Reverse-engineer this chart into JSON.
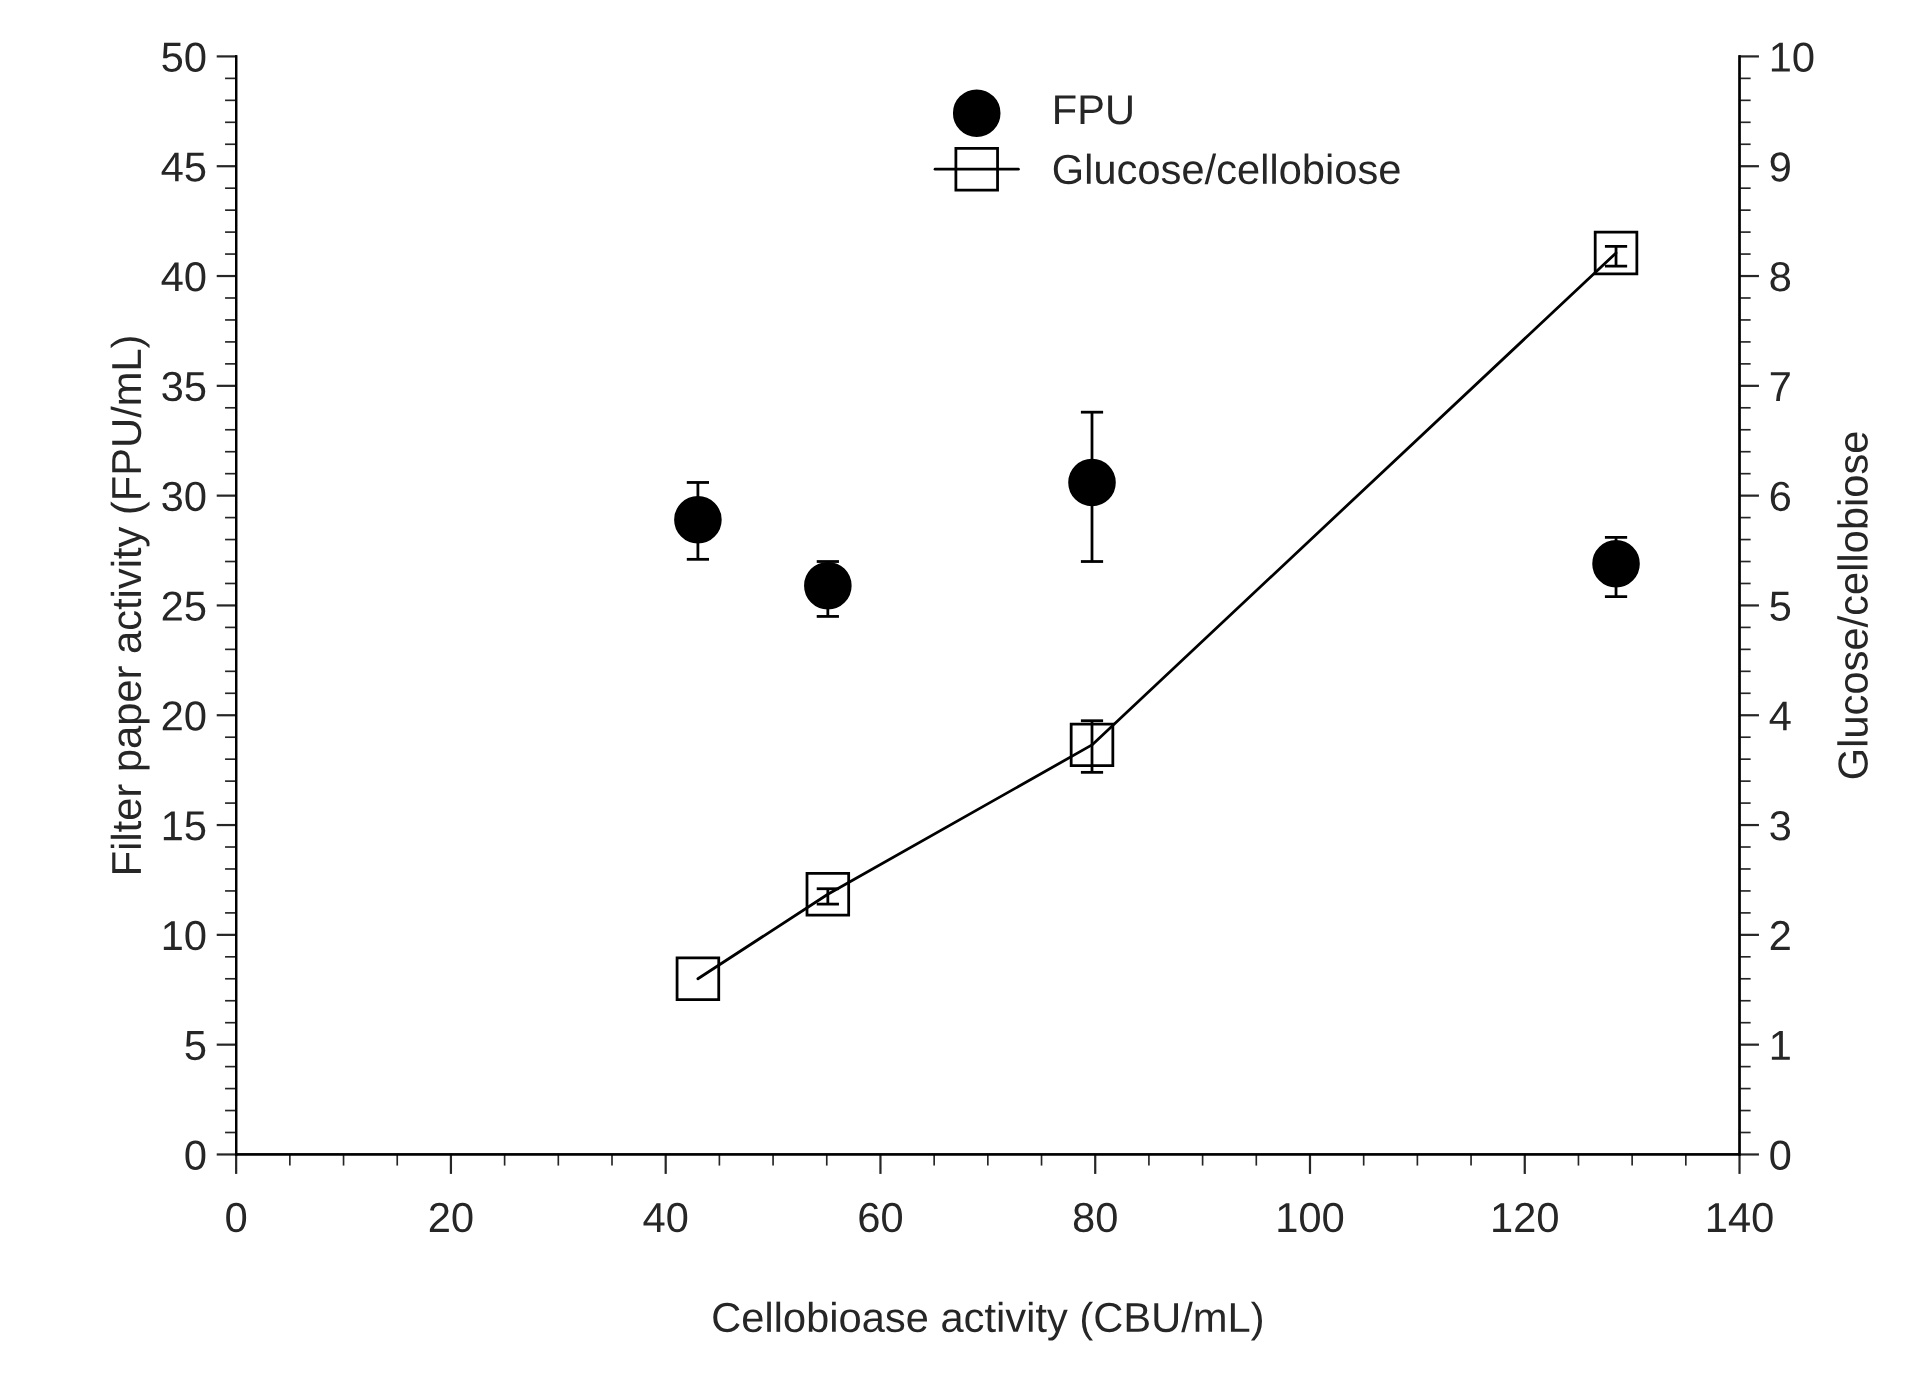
{
  "chart_data": {
    "type": "scatter",
    "xlabel": "Cellobioase activity (CBU/mL)",
    "ylabel": "Filter paper activity (FPU/mL)",
    "y2label": "Glucose/cellobiose",
    "xlim": [
      0,
      140
    ],
    "xticks": [
      0,
      20,
      40,
      60,
      80,
      100,
      120,
      140
    ],
    "ylim": [
      0,
      50
    ],
    "yticks": [
      0,
      5,
      10,
      15,
      20,
      25,
      30,
      35,
      40,
      45,
      50
    ],
    "y2lim": [
      0,
      10
    ],
    "y2ticks": [
      0,
      1,
      2,
      3,
      4,
      5,
      6,
      7,
      8,
      9,
      10
    ],
    "legend": "top",
    "grid": false,
    "series": [
      {
        "name": "FPU",
        "marker": "circle",
        "color": "#000000",
        "x": [
          43.0,
          55.1,
          79.7,
          128.5
        ],
        "values": [
          28.9,
          25.9,
          30.6,
          26.9
        ],
        "errors": [
          [
            27.1,
            30.6
          ],
          [
            24.5,
            27.0
          ],
          [
            27.0,
            33.8
          ],
          [
            25.4,
            28.1
          ]
        ]
      },
      {
        "name": "Glucose/cellobiose",
        "type": "line",
        "axis": "y2",
        "marker": "square",
        "line_style": "solid",
        "color": "#000000",
        "x": [
          43.0,
          55.1,
          79.7,
          128.5
        ],
        "values": [
          1.6,
          2.37,
          3.73,
          8.21
        ],
        "errors": [
          null,
          [
            2.28,
            2.42
          ],
          [
            3.48,
            3.95
          ],
          [
            8.09,
            8.27
          ]
        ]
      }
    ]
  }
}
